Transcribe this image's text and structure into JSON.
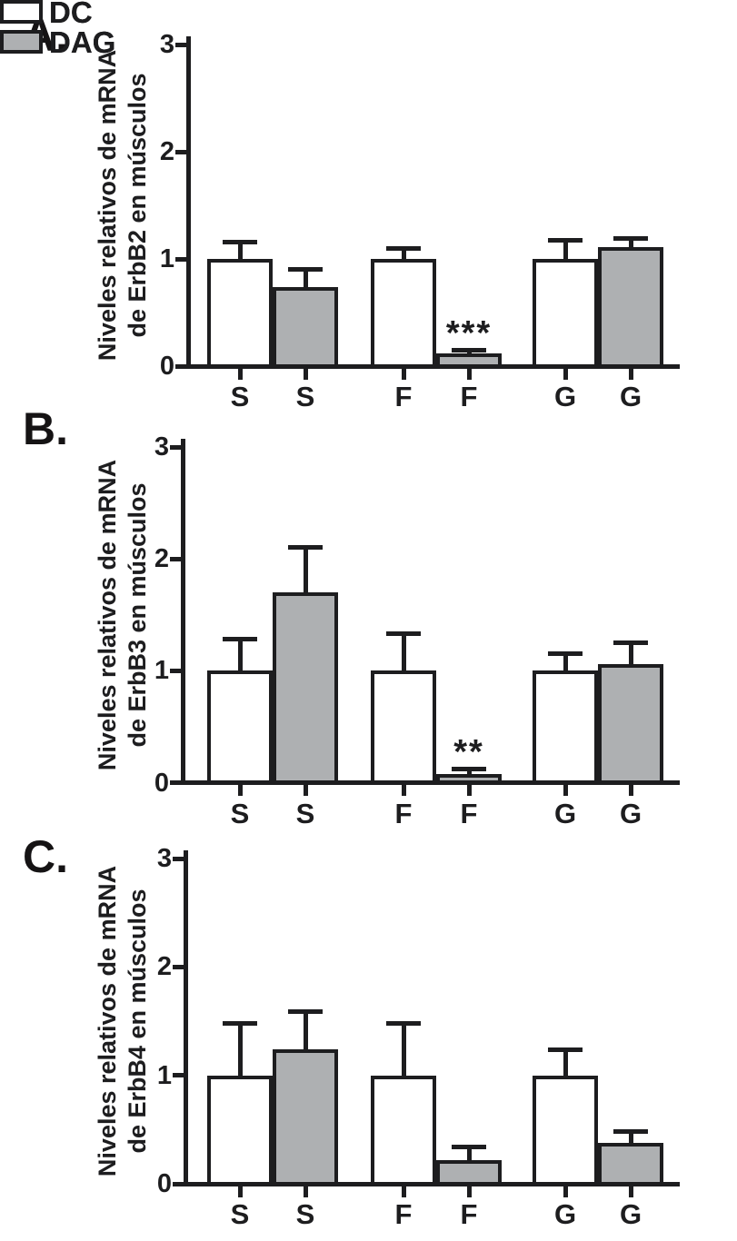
{
  "figure": {
    "background": "#ffffff",
    "ink_color": "#1d1d1f",
    "panel_labels": [
      "A.",
      "B.",
      "C."
    ]
  },
  "legend": {
    "items": [
      {
        "label": "DC",
        "fill": "#ffffff"
      },
      {
        "label": "DAG",
        "fill": "#aeb0b2"
      }
    ]
  },
  "chart_data": [
    {
      "type": "bar",
      "panel": "A.",
      "title": "",
      "xlabel": "",
      "ylabel": "Niveles relativos de mRNA de ErbB2 en músculos",
      "ylabel_lines": [
        "Niveles relativos de mRNA",
        "de ErbB2 en músculos"
      ],
      "categories": [
        "S",
        "F",
        "G"
      ],
      "ylim": [
        0,
        3
      ],
      "yticks": [
        0,
        1,
        2,
        3
      ],
      "grid": false,
      "legend_position": "top-right",
      "series": [
        {
          "name": "DC",
          "fill": "#ffffff",
          "values": [
            1.0,
            1.0,
            1.0
          ],
          "errors": [
            0.16,
            0.1,
            0.17
          ]
        },
        {
          "name": "DAG",
          "fill": "#aeb0b2",
          "values": [
            0.74,
            0.12,
            1.11
          ],
          "errors": [
            0.16,
            0.03,
            0.08
          ]
        }
      ],
      "annotations": [
        {
          "series": "DAG",
          "category": "F",
          "text": "***"
        }
      ]
    },
    {
      "type": "bar",
      "panel": "B.",
      "title": "",
      "xlabel": "",
      "ylabel": "Niveles relativos de mRNA de ErbB3 en músculos",
      "ylabel_lines": [
        "Niveles relativos de mRNA",
        "de ErbB3 en músculos"
      ],
      "categories": [
        "S",
        "F",
        "G"
      ],
      "ylim": [
        0,
        3
      ],
      "yticks": [
        0,
        1,
        2,
        3
      ],
      "grid": false,
      "legend_position": "top-right",
      "series": [
        {
          "name": "DC",
          "fill": "#ffffff",
          "values": [
            1.0,
            1.0,
            1.0
          ],
          "errors": [
            0.28,
            0.33,
            0.15
          ]
        },
        {
          "name": "DAG",
          "fill": "#aeb0b2",
          "values": [
            1.7,
            0.08,
            1.06
          ],
          "errors": [
            0.4,
            0.04,
            0.19
          ]
        }
      ],
      "annotations": [
        {
          "series": "DAG",
          "category": "F",
          "text": "**"
        }
      ]
    },
    {
      "type": "bar",
      "panel": "C.",
      "title": "",
      "xlabel": "",
      "ylabel": "Niveles relativos de mRNA de ErbB4 en músculos",
      "ylabel_lines": [
        "Niveles relativos de mRNA",
        "de ErbB4 en músculos"
      ],
      "categories": [
        "S",
        "F",
        "G"
      ],
      "ylim": [
        0,
        3
      ],
      "yticks": [
        0,
        1,
        2,
        3
      ],
      "grid": false,
      "legend_position": "top-right",
      "series": [
        {
          "name": "DC",
          "fill": "#ffffff",
          "values": [
            1.0,
            1.0,
            1.0
          ],
          "errors": [
            0.48,
            0.48,
            0.24
          ]
        },
        {
          "name": "DAG",
          "fill": "#aeb0b2",
          "values": [
            1.24,
            0.22,
            0.38
          ],
          "errors": [
            0.35,
            0.12,
            0.1
          ]
        }
      ],
      "annotations": []
    }
  ]
}
